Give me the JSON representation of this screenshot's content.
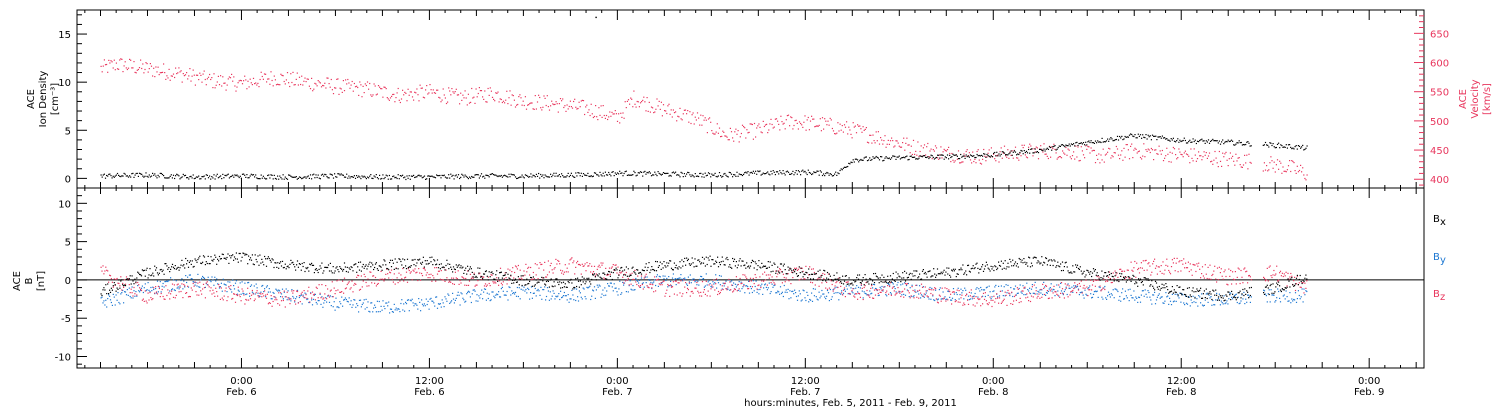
{
  "chart_data": [
    {
      "type": "scatter",
      "title": "",
      "ylabel": [
        "ACE",
        "Ion Density",
        "[cm⁻³]"
      ],
      "ylabel_right": [
        "ACE",
        "Velocity",
        "[km/s]"
      ],
      "ylim": [
        -1,
        17.5
      ],
      "ylim_right": [
        385,
        690
      ],
      "yticks": [
        0,
        5,
        10,
        15
      ],
      "yticks_right": [
        400,
        450,
        500,
        550,
        600,
        650
      ],
      "right_axis_color": "#e8365d",
      "series": [
        {
          "axis": "left",
          "color": "#000000",
          "x": [
            -9,
            -6,
            -3,
            0,
            3,
            6,
            9,
            12,
            15,
            18,
            21,
            23,
            24,
            27,
            30,
            33,
            36,
            38,
            39,
            42,
            45,
            48,
            51,
            54,
            57,
            60,
            63,
            66,
            68
          ],
          "y": [
            0.3,
            0.4,
            0.2,
            0.3,
            0.2,
            0.3,
            0.2,
            0.2,
            0.3,
            0.3,
            0.4,
            0.5,
            0.6,
            0.5,
            0.4,
            0.6,
            0.7,
            0.5,
            2.0,
            2.2,
            2.3,
            2.5,
            3.0,
            3.8,
            4.5,
            4.0,
            3.8,
            3.5,
            3.2
          ]
        },
        {
          "axis": "right",
          "color": "#e8365d",
          "x": [
            -9,
            -8,
            -6,
            -4,
            -2,
            0,
            2,
            4,
            6,
            8,
            10,
            12,
            14,
            16,
            18,
            20,
            22,
            23,
            24,
            25,
            27,
            29,
            31,
            33,
            35,
            37,
            39,
            41,
            43,
            45,
            47,
            49,
            51,
            53,
            55,
            57,
            59,
            61,
            63,
            65,
            67,
            68
          ],
          "y": [
            590,
            598,
            590,
            582,
            570,
            565,
            575,
            568,
            560,
            555,
            545,
            550,
            540,
            548,
            535,
            530,
            522,
            515,
            505,
            540,
            520,
            505,
            475,
            485,
            500,
            495,
            485,
            470,
            455,
            445,
            440,
            445,
            450,
            448,
            440,
            450,
            445,
            440,
            435,
            430,
            420,
            410
          ]
        }
      ]
    },
    {
      "type": "scatter",
      "title": "",
      "ylabel": [
        "ACE",
        "B",
        "[nT]"
      ],
      "xlabel": "hours:minutes, Feb.  5, 2011 - Feb.  9, 2011",
      "ylim": [
        -11.5,
        12
      ],
      "yticks": [
        -10,
        -5,
        0,
        5,
        10
      ],
      "xlim": [
        -10.5,
        75.5
      ],
      "xticks": [
        0,
        12,
        24,
        36,
        48,
        60,
        72
      ],
      "xtick_labels": [
        [
          "0:00",
          "Feb. 6"
        ],
        [
          "12:00",
          "Feb. 6"
        ],
        [
          "0:00",
          "Feb. 7"
        ],
        [
          "12:00",
          "Feb. 7"
        ],
        [
          "0:00",
          "Feb. 8"
        ],
        [
          "12:00",
          "Feb. 8"
        ],
        [
          "0:00",
          "Feb. 9"
        ]
      ],
      "legend": [
        {
          "label": "B",
          "sub": "x",
          "color": "#000000"
        },
        {
          "label": "B",
          "sub": "y",
          "color": "#1e78d2"
        },
        {
          "label": "B",
          "sub": "z",
          "color": "#e8365d"
        }
      ],
      "series": [
        {
          "name": "Bx",
          "color": "#000000",
          "x": [
            -9,
            -6,
            -3,
            0,
            3,
            6,
            9,
            12,
            15,
            18,
            21,
            24,
            27,
            30,
            33,
            36,
            39,
            42,
            45,
            48,
            51,
            54,
            57,
            60,
            63,
            66,
            68
          ],
          "y": [
            -1.5,
            1.0,
            2.5,
            3.0,
            2.0,
            1.5,
            2.0,
            2.5,
            1.0,
            0.0,
            -0.5,
            1.0,
            2.0,
            2.5,
            2.0,
            1.0,
            0.0,
            0.5,
            1.0,
            2.0,
            2.5,
            1.0,
            0.0,
            -1.5,
            -2.0,
            -1.0,
            0.5
          ]
        },
        {
          "name": "By",
          "color": "#1e78d2",
          "x": [
            -9,
            -6,
            -3,
            0,
            3,
            6,
            9,
            12,
            15,
            18,
            21,
            24,
            27,
            30,
            33,
            36,
            39,
            42,
            45,
            48,
            51,
            54,
            57,
            60,
            63,
            66,
            68
          ],
          "y": [
            -3.0,
            -1.0,
            0.0,
            -1.0,
            -2.0,
            -3.0,
            -3.5,
            -3.0,
            -2.0,
            -1.5,
            -2.0,
            -1.0,
            0.0,
            0.0,
            -1.0,
            -2.0,
            -1.5,
            -1.0,
            -2.0,
            -1.5,
            -1.0,
            -1.5,
            -2.0,
            -2.5,
            -2.5,
            -2.0,
            -2.0
          ]
        },
        {
          "name": "Bz",
          "color": "#e8365d",
          "x": [
            -9,
            -6,
            -3,
            0,
            3,
            6,
            9,
            12,
            15,
            18,
            21,
            24,
            27,
            30,
            33,
            36,
            39,
            42,
            45,
            48,
            51,
            54,
            57,
            60,
            63,
            66,
            68
          ],
          "y": [
            1.0,
            -2.0,
            -1.0,
            -2.0,
            -2.5,
            -1.0,
            0.5,
            1.0,
            0.0,
            1.0,
            2.0,
            1.0,
            -1.0,
            -1.0,
            0.0,
            1.0,
            -1.5,
            -1.0,
            -2.0,
            -2.5,
            -1.5,
            -1.0,
            1.5,
            2.0,
            0.5,
            1.0,
            -1.0
          ]
        }
      ]
    }
  ]
}
